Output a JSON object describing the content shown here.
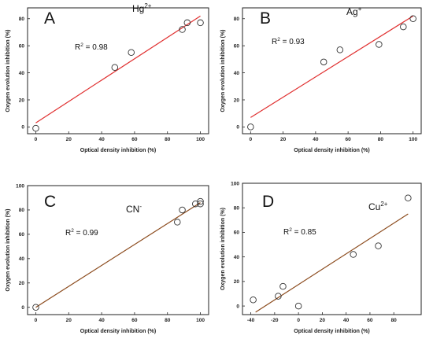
{
  "chart_data": [
    {
      "type": "scatter",
      "panel_letter": "A",
      "ion": "Hg",
      "ion_sup": "2+",
      "r2_label": "R",
      "r2_sup": "2",
      "r2_value": " = 0.98",
      "xlabel": "Optical density inhibition (%)",
      "ylabel": "Oxygen evolution inhibition (%)",
      "xlim": [
        -5,
        105
      ],
      "ylim": [
        -5,
        88
      ],
      "xticks": [
        0,
        20,
        40,
        60,
        80,
        100
      ],
      "yticks": [
        0,
        20,
        40,
        60,
        80
      ],
      "points": [
        [
          0,
          -1
        ],
        [
          48,
          44
        ],
        [
          58,
          55
        ],
        [
          89,
          72
        ],
        [
          92,
          77
        ],
        [
          100,
          77
        ]
      ],
      "fit": [
        [
          0,
          3
        ],
        [
          100,
          82
        ]
      ],
      "fit_color": "#e03030"
    },
    {
      "type": "scatter",
      "panel_letter": "B",
      "ion": "Ag",
      "ion_sup": "+",
      "r2_label": "R",
      "r2_sup": "2",
      "r2_value": " = 0.93",
      "xlabel": "Optical density inhibition (%)",
      "ylabel": "Oxygen evolution inhibition (%)",
      "xlim": [
        -5,
        105
      ],
      "ylim": [
        -5,
        88
      ],
      "xticks": [
        0,
        20,
        40,
        60,
        80,
        100
      ],
      "yticks": [
        0,
        20,
        40,
        60,
        80
      ],
      "points": [
        [
          0,
          0
        ],
        [
          45,
          48
        ],
        [
          55,
          57
        ],
        [
          79,
          61
        ],
        [
          94,
          74
        ],
        [
          100,
          80
        ]
      ],
      "fit": [
        [
          0,
          7
        ],
        [
          100,
          82
        ]
      ],
      "fit_color": "#e03030"
    },
    {
      "type": "scatter",
      "panel_letter": "C",
      "ion": "CN",
      "ion_sup": "-",
      "r2_label": "R",
      "r2_sup": "2",
      "r2_value": " = 0.99",
      "xlabel": "Optical density inhibition (%)",
      "ylabel": "Oxygen evolution inhibition (%)",
      "xlim": [
        -5,
        105
      ],
      "ylim": [
        -6,
        100
      ],
      "xticks": [
        0,
        20,
        40,
        60,
        80,
        100
      ],
      "yticks": [
        0,
        20,
        40,
        60,
        80,
        100
      ],
      "points": [
        [
          0,
          0
        ],
        [
          86,
          70
        ],
        [
          89,
          80
        ],
        [
          97,
          85
        ],
        [
          100,
          87
        ],
        [
          100,
          85
        ]
      ],
      "fit": [
        [
          0,
          0
        ],
        [
          100,
          86
        ]
      ],
      "fit_color": "#8b4a1c"
    },
    {
      "type": "scatter",
      "panel_letter": "D",
      "ion": "Cu",
      "ion_sup": "2+",
      "r2_label": "R",
      "r2_sup": "2",
      "r2_value": " = 0.85",
      "xlabel": "Optical density inhibition (%)",
      "ylabel": "Oxygen evolution inhibition (%)",
      "xlim": [
        -47,
        103
      ],
      "ylim": [
        -7,
        100
      ],
      "xticks": [
        -40,
        -20,
        0,
        20,
        40,
        60,
        80
      ],
      "yticks": [
        0,
        20,
        40,
        60,
        80,
        100
      ],
      "points": [
        [
          -38,
          5
        ],
        [
          -17,
          8
        ],
        [
          -13,
          16
        ],
        [
          0,
          0
        ],
        [
          46,
          42
        ],
        [
          67,
          49
        ],
        [
          92,
          88
        ]
      ],
      "fit": [
        [
          -36,
          -5
        ],
        [
          92,
          75
        ]
      ],
      "fit_color": "#8b4a1c"
    }
  ]
}
